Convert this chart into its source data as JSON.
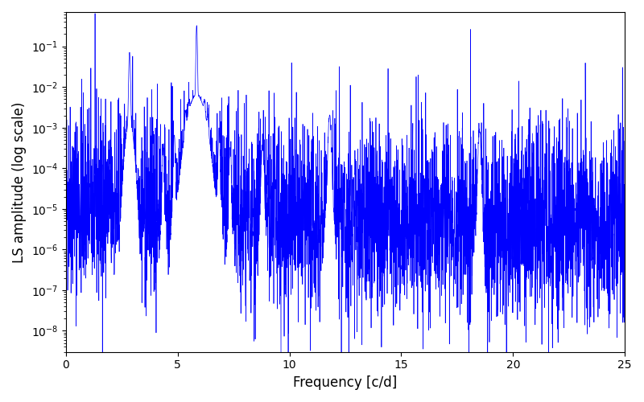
{
  "title": "",
  "xlabel": "Frequency [c/d]",
  "ylabel": "LS amplitude (log scale)",
  "xlim": [
    0,
    25
  ],
  "ylim": [
    3e-09,
    0.7
  ],
  "line_color": "#0000ff",
  "line_width": 0.5,
  "background_color": "#ffffff",
  "figsize": [
    8.0,
    5.0
  ],
  "dpi": 100,
  "seed": 42,
  "n_points": 4000,
  "freq_max": 25.0,
  "peak1_freq": 2.85,
  "peak1_amp": 0.07,
  "peak2_freq": 5.85,
  "peak2_amp": 0.32,
  "peak3_freq": 11.8,
  "peak3_amp": 0.002,
  "peak4_freq": 18.5,
  "peak4_amp": 0.0008,
  "noise_base_log_mean": -11.5,
  "noise_sigma": 1.8
}
